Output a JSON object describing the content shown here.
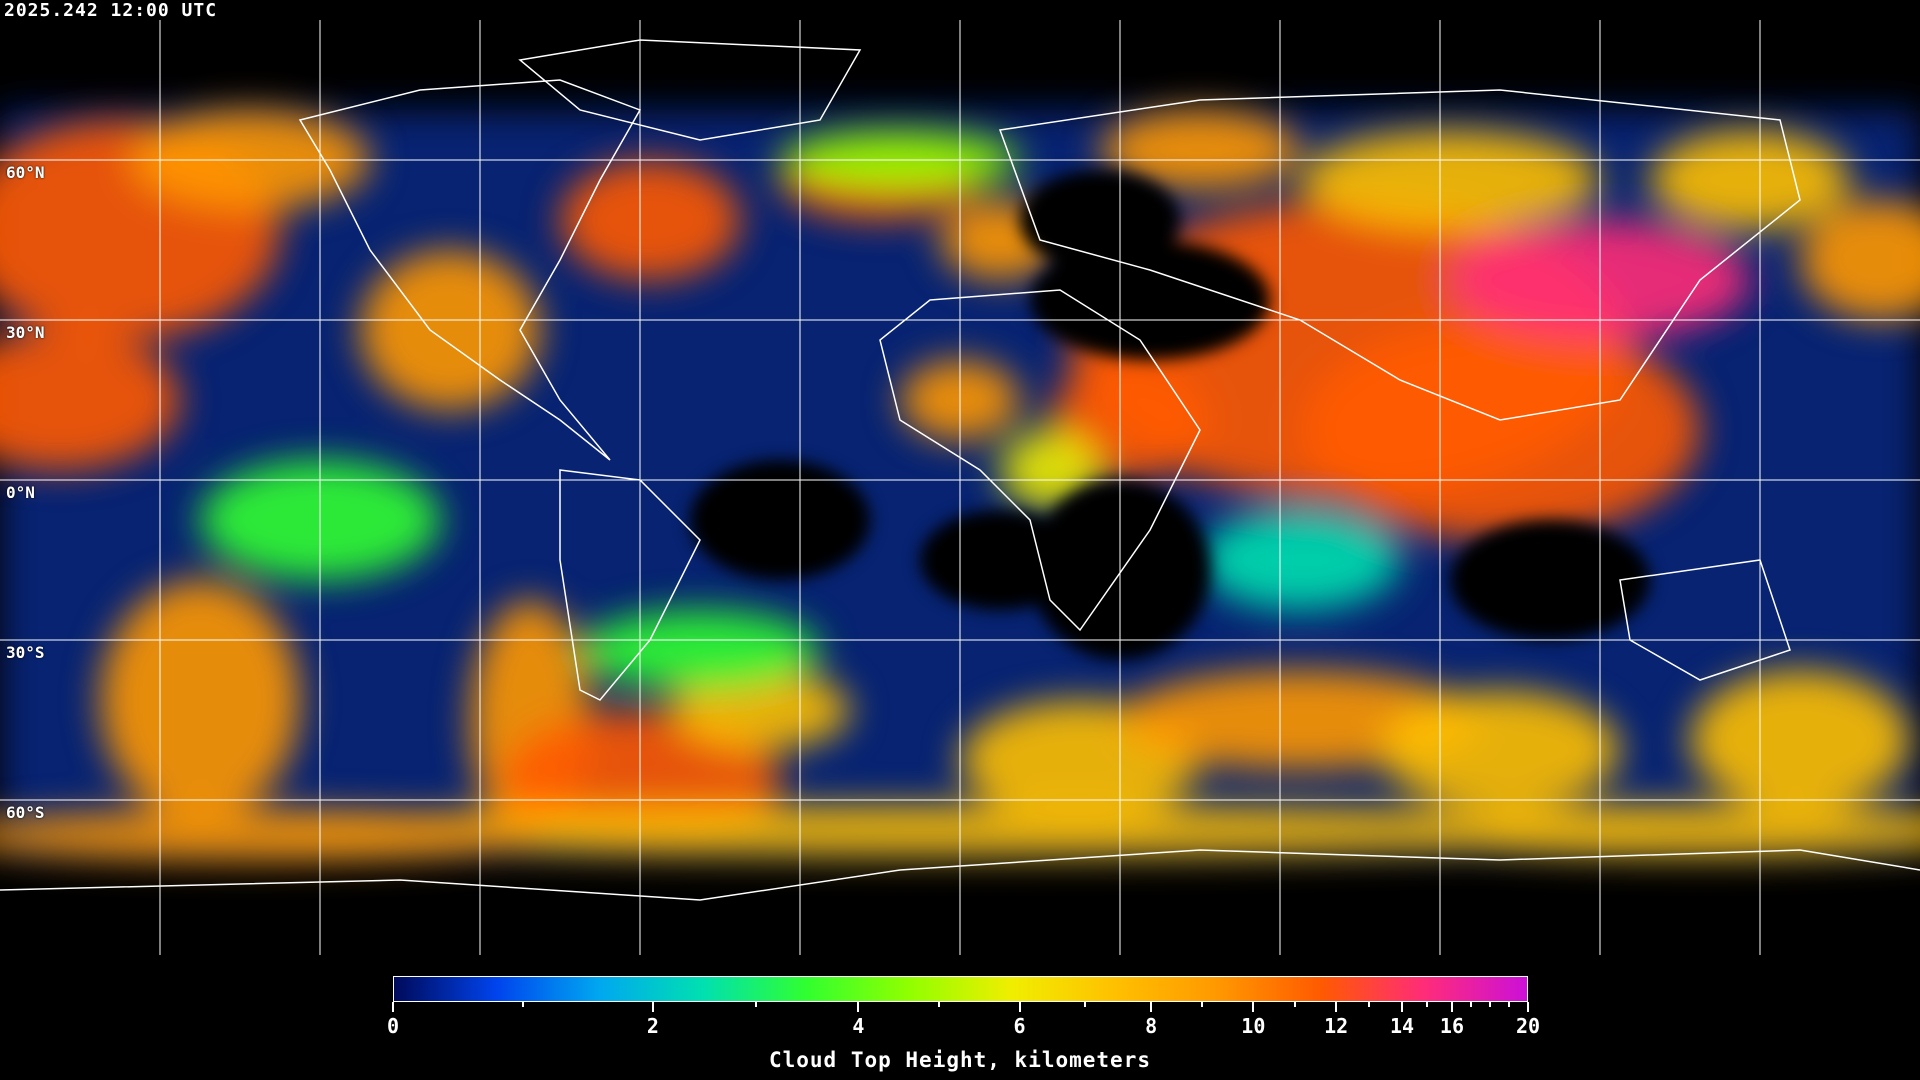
{
  "header": {
    "timestamp": "2025.242 12:00 UTC"
  },
  "map": {
    "projection": "equirectangular",
    "lat_labels": [
      "60°N",
      "30°N",
      "0°N",
      "30°S",
      "60°S"
    ],
    "lat_values": [
      60,
      30,
      0,
      -30,
      -60
    ],
    "lon_grid_step_deg": 30,
    "coastline_color": "#ffffff",
    "grid_color": "#ffffff"
  },
  "legend": {
    "title": "Cloud Top Height, kilometers",
    "range": [
      0,
      20
    ],
    "major_ticks": [
      "0",
      "2",
      "4",
      "6",
      "8",
      "10",
      "12",
      "14",
      "16",
      "20"
    ],
    "minor_ticks": [
      1,
      3,
      5,
      7,
      9,
      11,
      13,
      15,
      17,
      18,
      19
    ],
    "colors": [
      "#000a5a",
      "#0044ee",
      "#00a8f0",
      "#00e0b0",
      "#30ff30",
      "#90ff00",
      "#f0ee00",
      "#ffc000",
      "#ff9800",
      "#ff5a00",
      "#ff2c78",
      "#cc10d8"
    ]
  }
}
